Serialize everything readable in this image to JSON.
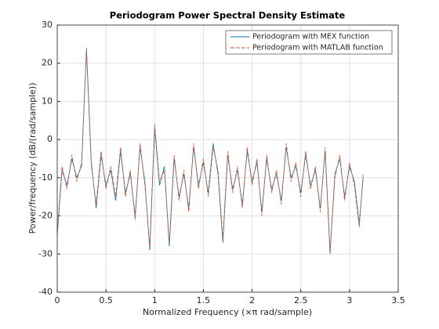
{
  "chart_data": {
    "type": "line",
    "title": "Periodogram Power Spectral Density Estimate",
    "xlabel": "Normalized Frequency (×π rad/sample)",
    "ylabel": "Power/frequency (dB/(rad/sample))",
    "x": [
      0,
      0.05,
      0.1,
      0.15,
      0.2,
      0.25,
      0.3,
      0.35,
      0.4,
      0.45,
      0.5,
      0.55,
      0.6,
      0.65,
      0.7,
      0.75,
      0.8,
      0.85,
      0.9,
      0.95,
      1.0,
      1.05,
      1.1,
      1.15,
      1.2,
      1.25,
      1.3,
      1.35,
      1.4,
      1.45,
      1.5,
      1.55,
      1.6,
      1.65,
      1.7,
      1.75,
      1.8,
      1.85,
      1.9,
      1.95,
      2.0,
      2.05,
      2.1,
      2.15,
      2.2,
      2.25,
      2.3,
      2.35,
      2.4,
      2.45,
      2.5,
      2.55,
      2.6,
      2.65,
      2.7,
      2.75,
      2.8,
      2.85,
      2.9,
      2.95,
      3.0,
      3.05,
      3.1,
      3.14
    ],
    "series": [
      {
        "name": "Periodogram with MEX function",
        "color": "#0072bd",
        "dashed": false,
        "values": [
          -25,
          -8,
          -12,
          -5,
          -10,
          -7,
          24,
          -6,
          -18,
          -4,
          -12,
          -8,
          -16,
          -3,
          -14,
          -9,
          -20,
          -2,
          -11,
          -29,
          3,
          -12,
          -7,
          -28,
          -5,
          -15,
          -9,
          -18,
          -2,
          -12,
          -6,
          -14,
          -1,
          -9,
          -27,
          -4,
          -13,
          -8,
          -17,
          -3,
          -11,
          -6,
          -19,
          -5,
          -13,
          -9,
          -16,
          -2,
          -10,
          -7,
          -14,
          -4,
          -12,
          -8,
          -18,
          -3,
          -30,
          -9,
          -5,
          -15,
          -7,
          -11,
          -22,
          -10
        ]
      },
      {
        "name": "Periodogram with MATLAB function",
        "color": "#d95319",
        "dashed": true,
        "values": [
          -24,
          -7,
          -13,
          -4,
          -11,
          -6,
          23,
          -7,
          -17,
          -3,
          -13,
          -7,
          -15,
          -2,
          -15,
          -8,
          -21,
          -1,
          -12,
          -28,
          4,
          -11,
          -8,
          -27,
          -4,
          -16,
          -8,
          -19,
          -1,
          -13,
          -5,
          -15,
          -2,
          -8,
          -26,
          -3,
          -14,
          -7,
          -18,
          -2,
          -12,
          -5,
          -20,
          -4,
          -14,
          -8,
          -17,
          -1,
          -11,
          -6,
          -15,
          -3,
          -13,
          -7,
          -19,
          -2,
          -29,
          -10,
          -4,
          -16,
          -6,
          -12,
          -23,
          -9
        ]
      }
    ],
    "xlim": [
      0,
      3.5
    ],
    "xticks": [
      0,
      0.5,
      1,
      1.5,
      2,
      2.5,
      3,
      3.5
    ],
    "ylim": [
      -40,
      30
    ],
    "yticks": [
      -40,
      -30,
      -20,
      -10,
      0,
      10,
      20,
      30
    ],
    "grid": true,
    "legend": "northeast"
  }
}
